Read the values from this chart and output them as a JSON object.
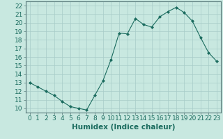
{
  "x": [
    0,
    1,
    2,
    3,
    4,
    5,
    6,
    7,
    8,
    9,
    10,
    11,
    12,
    13,
    14,
    15,
    16,
    17,
    18,
    19,
    20,
    21,
    22,
    23
  ],
  "y": [
    13.0,
    12.5,
    12.0,
    11.5,
    10.8,
    10.2,
    10.0,
    9.8,
    11.5,
    13.2,
    15.7,
    18.8,
    18.7,
    20.5,
    19.8,
    19.5,
    20.7,
    21.3,
    21.8,
    21.2,
    20.2,
    18.3,
    16.5,
    15.5
  ],
  "line_color": "#1a6b5e",
  "marker": "D",
  "marker_size": 2.0,
  "bg_color": "#c8e8e0",
  "grid_color": "#a8ccc8",
  "xlabel": "Humidex (Indice chaleur)",
  "ylim": [
    9.5,
    22.5
  ],
  "xlim": [
    -0.5,
    23.5
  ],
  "yticks": [
    10,
    11,
    12,
    13,
    14,
    15,
    16,
    17,
    18,
    19,
    20,
    21,
    22
  ],
  "xticks": [
    0,
    1,
    2,
    3,
    4,
    5,
    6,
    7,
    8,
    9,
    10,
    11,
    12,
    13,
    14,
    15,
    16,
    17,
    18,
    19,
    20,
    21,
    22,
    23
  ],
  "tick_label_fontsize": 6.5,
  "xlabel_fontsize": 7.5
}
